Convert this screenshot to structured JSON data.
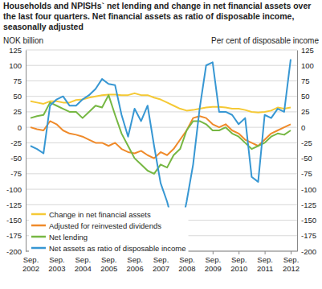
{
  "chart_data": {
    "type": "line",
    "title": "Households and NPISHs` net lending and change in net financial assets over the last four quarters. Net financial assets as ratio of disposable income, seasonally adjusted",
    "y_label": "NOK billion",
    "y2_label": "Per cent of disposable income",
    "categories": [
      "Sep. 2002",
      null,
      null,
      null,
      "Sep. 2003",
      null,
      null,
      null,
      "Sep. 2004",
      null,
      null,
      null,
      "Sep. 2005",
      null,
      null,
      null,
      "Sep. 2006",
      null,
      null,
      null,
      "Sep. 2007",
      null,
      null,
      null,
      "Sep. 2008",
      null,
      null,
      null,
      "Sep. 2009",
      null,
      null,
      null,
      "Sep. 2010",
      null,
      null,
      null,
      "Sep. 2011",
      null,
      null,
      null,
      "Sep. 2012"
    ],
    "series": [
      {
        "name": "Change in net financial assets",
        "color": "#f5c935",
        "values": [
          42,
          40,
          38,
          42,
          42,
          40,
          40,
          44,
          45,
          48,
          50,
          52,
          53,
          53,
          52,
          52,
          55,
          52,
          52,
          48,
          45,
          40,
          35,
          30,
          27,
          28,
          30,
          32,
          33,
          33,
          32,
          30,
          30,
          28,
          25,
          24,
          25,
          27,
          32,
          30,
          32
        ]
      },
      {
        "name": "Adjusted for reinvested dividends",
        "color": "#ef8a2a",
        "values": [
          0,
          -3,
          -5,
          10,
          5,
          -5,
          -10,
          -12,
          -15,
          -20,
          -25,
          -25,
          -30,
          -25,
          -35,
          -40,
          -42,
          -38,
          -45,
          -50,
          -40,
          -45,
          -35,
          -20,
          -5,
          15,
          18,
          15,
          5,
          0,
          5,
          -5,
          -10,
          -20,
          -25,
          -30,
          -20,
          -10,
          -5,
          0,
          5
        ]
      },
      {
        "name": "Net lending",
        "color": "#76b743",
        "values": [
          15,
          18,
          20,
          40,
          35,
          30,
          25,
          25,
          15,
          25,
          35,
          32,
          52,
          20,
          -10,
          -30,
          -50,
          -60,
          -70,
          -75,
          -60,
          -65,
          -45,
          -35,
          -5,
          10,
          10,
          5,
          -5,
          -5,
          0,
          -10,
          -15,
          -25,
          -35,
          -30,
          -25,
          -15,
          -10,
          -12,
          -5
        ]
      },
      {
        "name": "Net assets as ratio of disposable income",
        "color": "#3797d3",
        "axis": "y2",
        "values": [
          -30,
          -35,
          -42,
          35,
          45,
          50,
          35,
          35,
          45,
          52,
          62,
          78,
          70,
          68,
          20,
          -15,
          30,
          10,
          35,
          -30,
          -90,
          -120,
          -160,
          -170,
          -120,
          -60,
          30,
          100,
          105,
          25,
          25,
          20,
          5,
          15,
          -80,
          -88,
          20,
          15,
          30,
          25,
          110
        ]
      }
    ],
    "ylim": [
      -200,
      125
    ],
    "yticks": [
      -200,
      -175,
      -150,
      -125,
      -100,
      -75,
      -50,
      -25,
      0,
      25,
      50,
      75,
      100,
      125
    ],
    "y2lim": [
      -200,
      125
    ],
    "y2ticks": [
      -200,
      -175,
      -150,
      -125,
      -100,
      -75,
      -50,
      -25,
      0,
      25,
      50,
      75,
      100,
      125
    ],
    "grid": true,
    "legend": "lower left"
  }
}
